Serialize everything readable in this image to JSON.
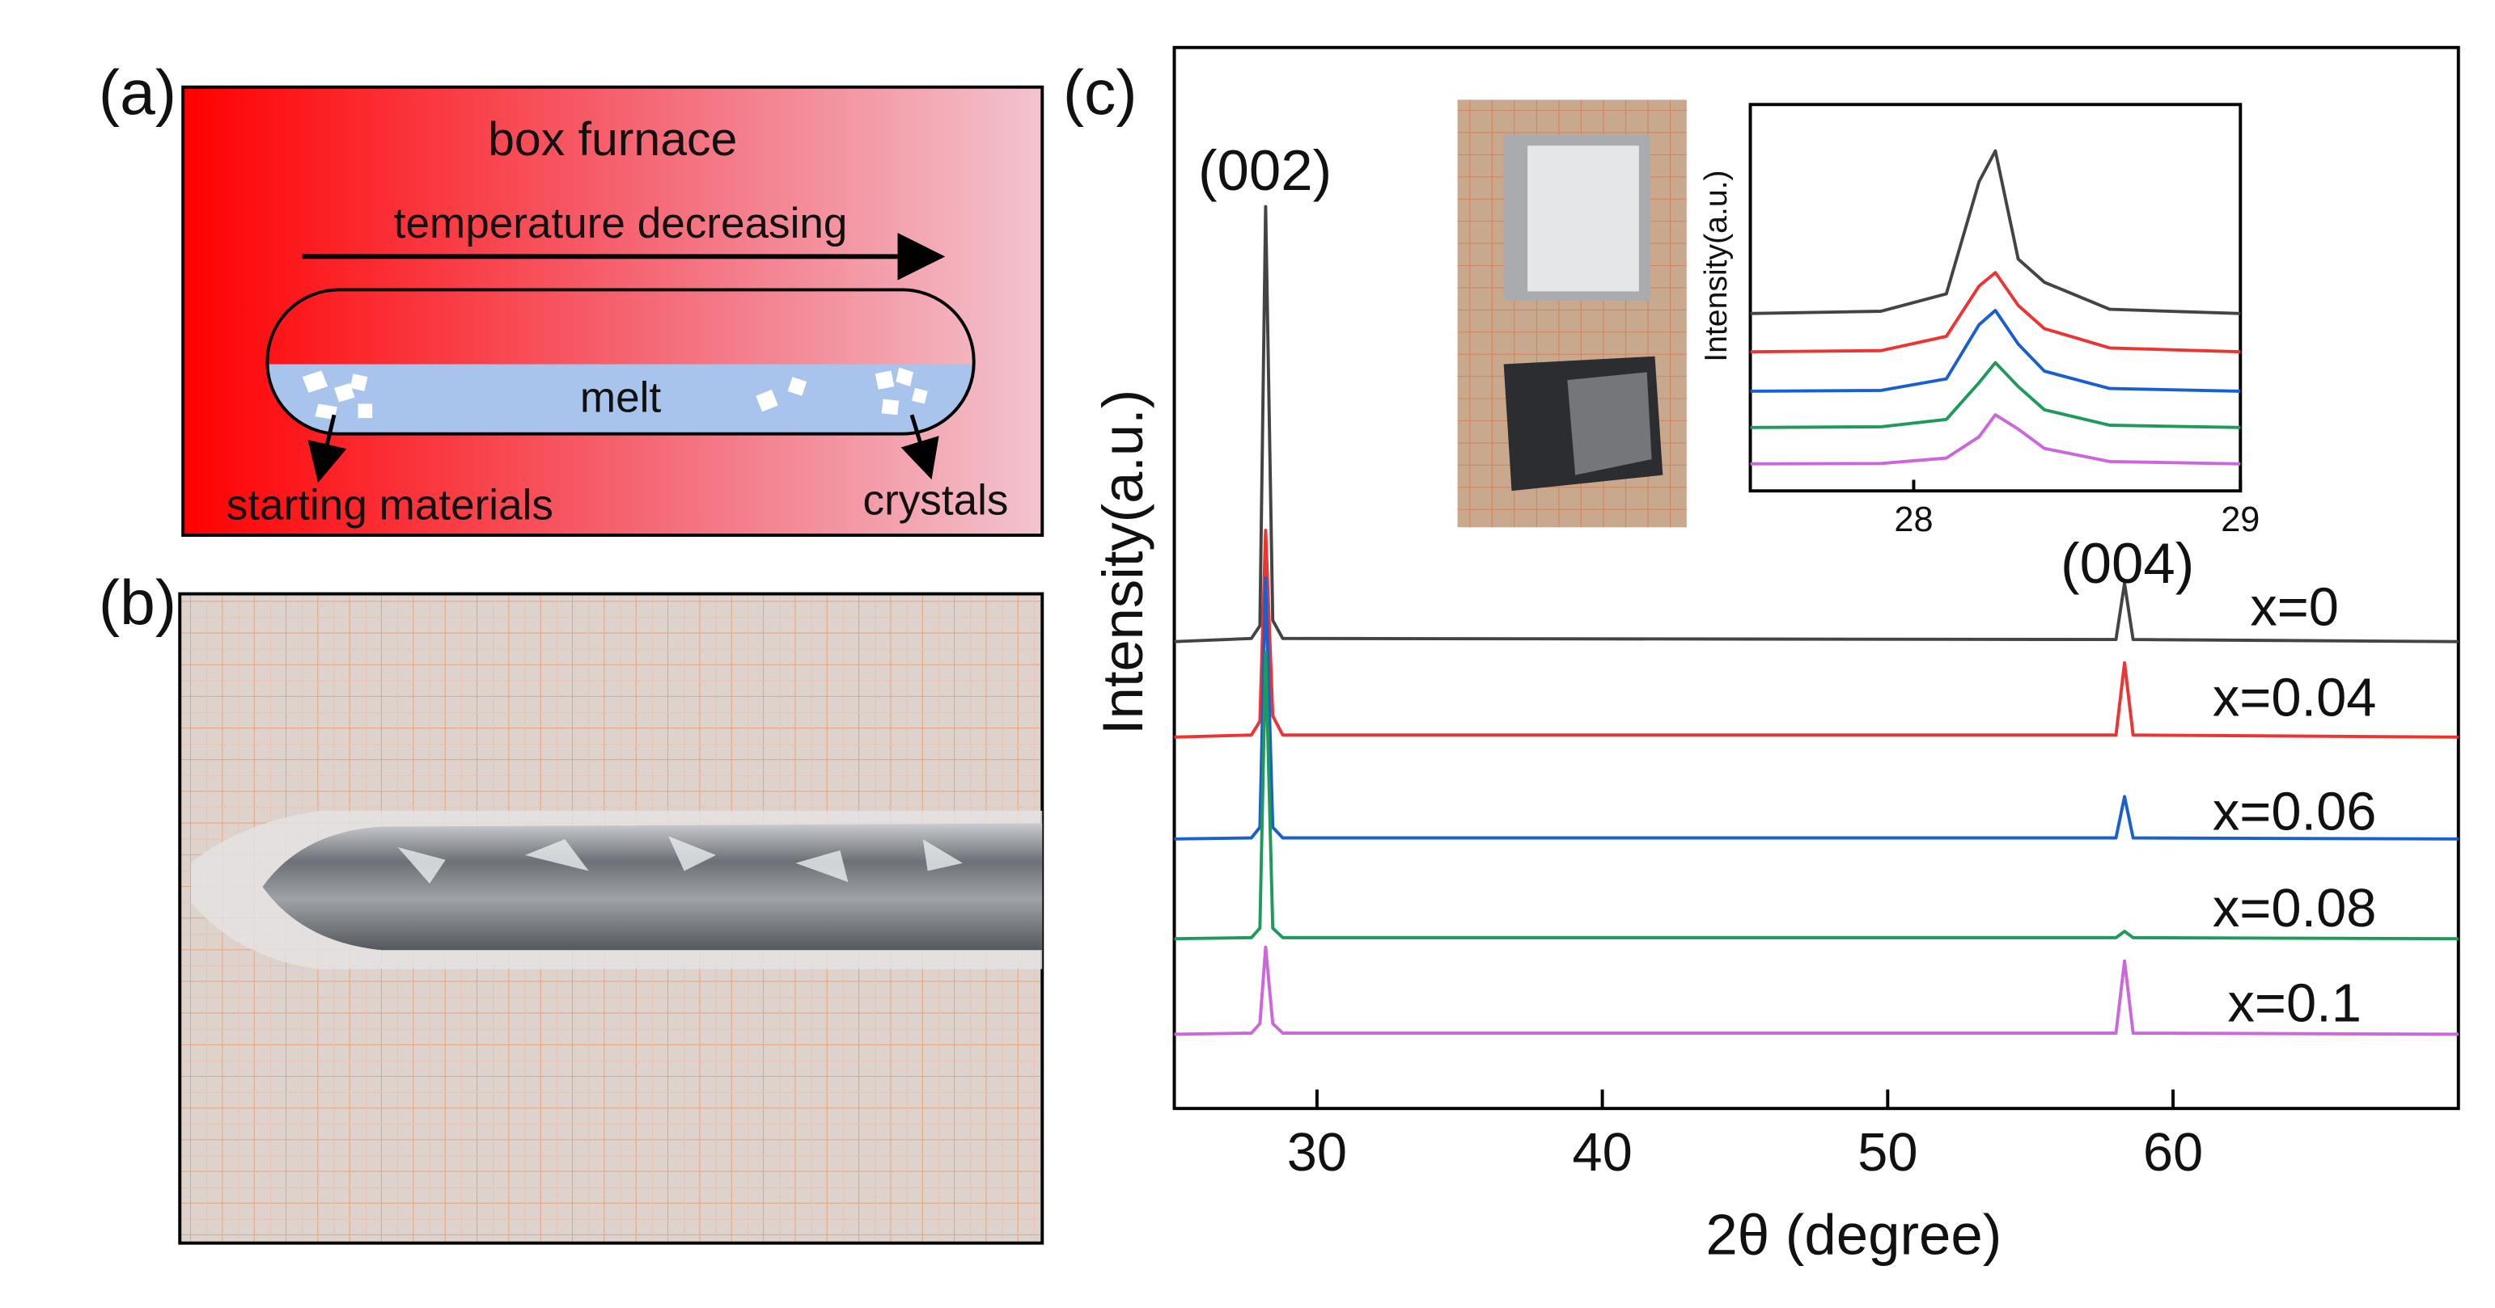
{
  "panel_a": {
    "label": "(a)",
    "title": "box furnace",
    "arrow_label": "temperature decreasing",
    "melt_label": "melt",
    "left_label": "starting materials",
    "right_label": "crystals"
  },
  "panel_b": {
    "label": "(b)"
  },
  "chart_data": [
    {
      "type": "line",
      "panel_label": "(c)",
      "xlabel": "2θ (degree)",
      "ylabel": "Intensity(a.u.)",
      "x": [
        25,
        27.7,
        28.0,
        28.2,
        28.45,
        28.8,
        58.0,
        58.3,
        58.6,
        70
      ],
      "xlim": [
        25,
        70
      ],
      "ylim": [
        0,
        100
      ],
      "xticks": [
        30,
        40,
        50,
        60
      ],
      "annotations": [
        "(002)",
        "(004)"
      ],
      "series": [
        {
          "name": "x=0",
          "color": "#444444",
          "values": [
            44,
            44.3,
            45.5,
            85,
            46,
            44.3,
            44.2,
            49.5,
            44.2,
            44
          ]
        },
        {
          "name": "x=0.04",
          "color": "#ee3333",
          "values": [
            35,
            35.2,
            36.5,
            54.5,
            37,
            35.2,
            35.2,
            42,
            35.2,
            35
          ]
        },
        {
          "name": "x=0.06",
          "color": "#1a5fd0",
          "values": [
            25.4,
            25.5,
            26.5,
            50,
            26.5,
            25.5,
            25.5,
            29.4,
            25.5,
            25.4
          ]
        },
        {
          "name": "x=0.08",
          "color": "#1e9a5a",
          "values": [
            16,
            16.1,
            17,
            43,
            17,
            16.1,
            16.1,
            16.7,
            16.1,
            16
          ]
        },
        {
          "name": "x=0.1",
          "color": "#cc66dd",
          "values": [
            7,
            7.1,
            8,
            15.2,
            8,
            7.1,
            7.1,
            13.9,
            7.1,
            7
          ]
        }
      ]
    },
    {
      "type": "line",
      "ylabel": "Intensity(a.u.)",
      "x": [
        27.5,
        27.9,
        28.1,
        28.2,
        28.25,
        28.32,
        28.4,
        28.6,
        29
      ],
      "xlim": [
        27.5,
        29
      ],
      "ylim": [
        0,
        100
      ],
      "xticks": [
        28,
        29
      ],
      "series": [
        {
          "color": "#444444",
          "values": [
            45.9,
            46.5,
            51,
            80,
            88,
            60,
            54,
            47,
            45.9
          ]
        },
        {
          "color": "#ee3333",
          "values": [
            36,
            36.3,
            40,
            53,
            56.5,
            48,
            42,
            37,
            36
          ]
        },
        {
          "color": "#1a5fd0",
          "values": [
            25.8,
            26,
            29,
            43,
            46.7,
            38,
            31,
            26.5,
            25.8
          ]
        },
        {
          "color": "#1e9a5a",
          "values": [
            16.4,
            16.6,
            18.5,
            28,
            33.2,
            27,
            21,
            17,
            16.4
          ]
        },
        {
          "color": "#cc66dd",
          "values": [
            7,
            7.1,
            8.5,
            14,
            19.7,
            16,
            11,
            7.6,
            7
          ]
        }
      ]
    }
  ]
}
